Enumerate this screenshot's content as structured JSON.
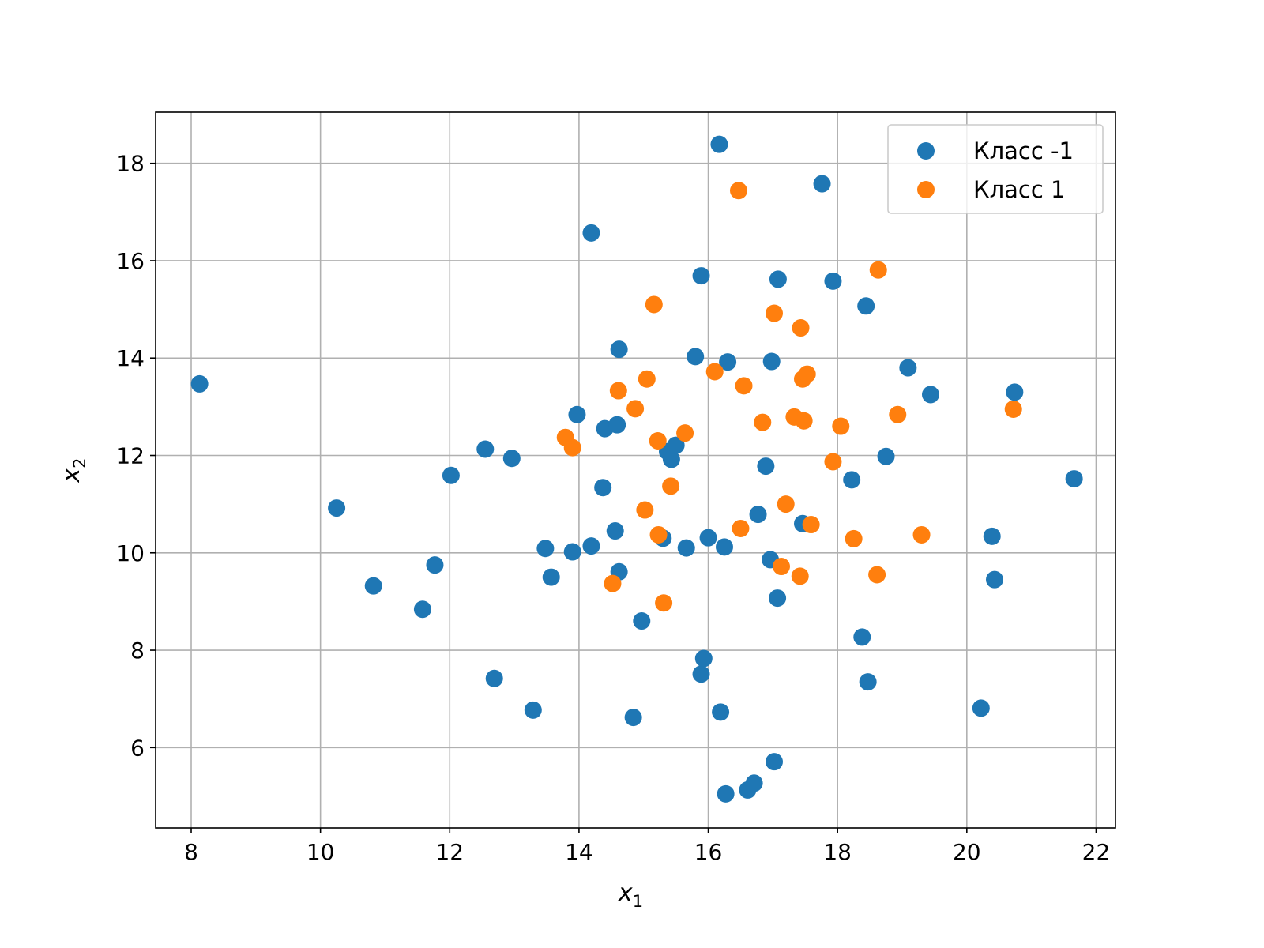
{
  "chart_data": {
    "type": "scatter",
    "title": "",
    "xlabel": "x",
    "xlabel_sub": "1",
    "ylabel": "x",
    "ylabel_sub": "2",
    "xlim": [
      7.45,
      22.3
    ],
    "ylim": [
      4.35,
      19.05
    ],
    "xticks": [
      8,
      10,
      12,
      14,
      16,
      18,
      20,
      22
    ],
    "yticks": [
      6,
      8,
      10,
      12,
      14,
      16,
      18
    ],
    "grid": true,
    "legend_position": "top-right",
    "series": [
      {
        "name": "Класс -1",
        "color": "#1f77b4",
        "points": [
          [
            8.13,
            13.47
          ],
          [
            10.25,
            10.92
          ],
          [
            10.82,
            9.32
          ],
          [
            11.58,
            8.84
          ],
          [
            11.77,
            9.75
          ],
          [
            12.02,
            11.59
          ],
          [
            12.55,
            12.13
          ],
          [
            12.69,
            7.42
          ],
          [
            12.96,
            11.94
          ],
          [
            13.29,
            6.77
          ],
          [
            13.48,
            10.09
          ],
          [
            13.57,
            9.5
          ],
          [
            13.9,
            10.02
          ],
          [
            13.97,
            12.84
          ],
          [
            14.19,
            10.14
          ],
          [
            14.19,
            16.57
          ],
          [
            14.37,
            11.34
          ],
          [
            14.4,
            12.55
          ],
          [
            14.56,
            10.45
          ],
          [
            14.59,
            12.63
          ],
          [
            14.62,
            9.61
          ],
          [
            14.62,
            14.18
          ],
          [
            14.84,
            6.62
          ],
          [
            14.97,
            8.6
          ],
          [
            15.3,
            10.3
          ],
          [
            15.37,
            12.08
          ],
          [
            15.43,
            11.92
          ],
          [
            15.5,
            12.21
          ],
          [
            15.66,
            10.1
          ],
          [
            15.8,
            14.03
          ],
          [
            15.89,
            7.51
          ],
          [
            15.89,
            15.69
          ],
          [
            15.93,
            7.83
          ],
          [
            16.0,
            10.31
          ],
          [
            16.17,
            18.39
          ],
          [
            16.19,
            6.73
          ],
          [
            16.25,
            10.12
          ],
          [
            16.27,
            5.05
          ],
          [
            16.3,
            13.92
          ],
          [
            16.61,
            5.13
          ],
          [
            16.71,
            5.27
          ],
          [
            16.77,
            10.79
          ],
          [
            16.89,
            11.78
          ],
          [
            16.96,
            9.86
          ],
          [
            16.98,
            13.93
          ],
          [
            17.02,
            5.71
          ],
          [
            17.07,
            9.07
          ],
          [
            17.08,
            15.62
          ],
          [
            17.46,
            10.6
          ],
          [
            17.76,
            17.58
          ],
          [
            17.93,
            15.58
          ],
          [
            18.22,
            11.5
          ],
          [
            18.38,
            8.27
          ],
          [
            18.44,
            15.07
          ],
          [
            18.47,
            7.35
          ],
          [
            18.75,
            11.98
          ],
          [
            19.09,
            13.8
          ],
          [
            19.44,
            13.25
          ],
          [
            20.22,
            6.81
          ],
          [
            20.39,
            10.34
          ],
          [
            20.43,
            9.45
          ],
          [
            20.74,
            13.3
          ],
          [
            21.66,
            11.52
          ]
        ]
      },
      {
        "name": "Класс 1",
        "color": "#ff7f0e",
        "points": [
          [
            13.79,
            12.37
          ],
          [
            13.9,
            12.16
          ],
          [
            14.52,
            9.37
          ],
          [
            14.61,
            13.33
          ],
          [
            14.87,
            12.96
          ],
          [
            15.02,
            10.88
          ],
          [
            15.05,
            13.57
          ],
          [
            15.16,
            15.1
          ],
          [
            15.22,
            12.3
          ],
          [
            15.23,
            10.37
          ],
          [
            15.31,
            8.97
          ],
          [
            15.42,
            11.37
          ],
          [
            15.64,
            12.46
          ],
          [
            16.1,
            13.72
          ],
          [
            16.47,
            17.44
          ],
          [
            16.5,
            10.5
          ],
          [
            16.55,
            13.43
          ],
          [
            16.84,
            12.68
          ],
          [
            17.02,
            14.92
          ],
          [
            17.13,
            9.72
          ],
          [
            17.2,
            11.0
          ],
          [
            17.33,
            12.79
          ],
          [
            17.42,
            9.52
          ],
          [
            17.43,
            14.62
          ],
          [
            17.46,
            13.57
          ],
          [
            17.48,
            12.71
          ],
          [
            17.53,
            13.67
          ],
          [
            17.59,
            10.58
          ],
          [
            17.93,
            11.87
          ],
          [
            18.05,
            12.6
          ],
          [
            18.25,
            10.29
          ],
          [
            18.61,
            9.55
          ],
          [
            18.63,
            15.81
          ],
          [
            18.93,
            12.84
          ],
          [
            19.3,
            10.37
          ],
          [
            20.72,
            12.95
          ]
        ]
      }
    ]
  }
}
